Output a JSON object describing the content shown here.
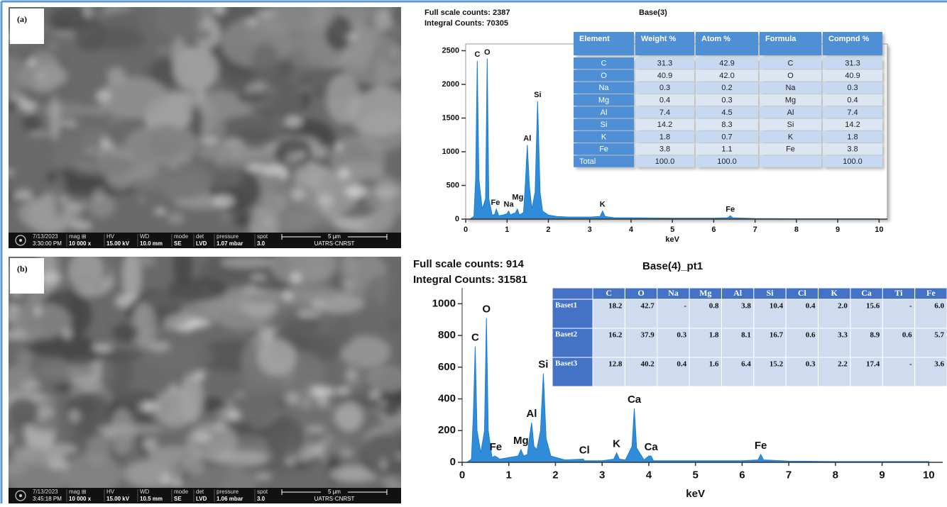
{
  "panels": [
    {
      "label": "(a)",
      "sem": {
        "info": [
          [
            "7/13/2023",
            "3:30:00 PM"
          ],
          [
            "mag ⊞",
            "10 000 x"
          ],
          [
            "HV",
            "15.00 kV"
          ],
          [
            "WD",
            "10.0 mm"
          ],
          [
            "mode",
            "SE"
          ],
          [
            "det",
            "LVD"
          ],
          [
            "pressure",
            "1.07 mbar"
          ],
          [
            "spot",
            "3.0"
          ]
        ],
        "scale": "5 µm",
        "lab": "UATRS·CNRST"
      },
      "table": {
        "header": [
          "Element",
          "Weight %",
          "Atom %",
          "Formula",
          "Compnd %"
        ],
        "rows": [
          [
            "C",
            "31.3",
            "42.9",
            "C",
            "31.3"
          ],
          [
            "O",
            "40.9",
            "42.0",
            "O",
            "40.9"
          ],
          [
            "Na",
            "0.3",
            "0.2",
            "Na",
            "0.3"
          ],
          [
            "Mg",
            "0.4",
            "0.3",
            "Mg",
            "0.4"
          ],
          [
            "Al",
            "7.4",
            "4.5",
            "Al",
            "7.4"
          ],
          [
            "Si",
            "14.2",
            "8.3",
            "Si",
            "14.2"
          ],
          [
            "K",
            "1.8",
            "0.7",
            "K",
            "1.8"
          ],
          [
            "Fe",
            "3.8",
            "1.1",
            "Fe",
            "3.8"
          ],
          [
            "Total",
            "100.0",
            "100.0",
            null,
            "100.0"
          ]
        ]
      }
    },
    {
      "label": "(b)",
      "sem": {
        "info": [
          [
            "7/13/2023",
            "3:45:18 PM"
          ],
          [
            "mag ⊞",
            "10 000 x"
          ],
          [
            "HV",
            "15.00 kV"
          ],
          [
            "WD",
            "10.5 mm"
          ],
          [
            "mode",
            "SE"
          ],
          [
            "det",
            "LVD"
          ],
          [
            "pressure",
            "1.06 mbar"
          ],
          [
            "spot",
            "3.0"
          ]
        ],
        "scale": "5 µm",
        "lab": "UATRS·CNRST"
      },
      "table": {
        "header": [
          "C",
          "O",
          "Na",
          "Mg",
          "Al",
          "Si",
          "Cl",
          "K",
          "Ca",
          "Ti",
          "Fe"
        ],
        "rows": [
          {
            "name": "Baset1",
            "values": [
              "18.2",
              "42.7",
              "-",
              "0.8",
              "3.8",
              "10.4",
              "0.4",
              "2.0",
              "15.6",
              "-",
              "6.0"
            ]
          },
          {
            "name": "Baset2",
            "values": [
              "16.2",
              "37.9",
              "0.3",
              "1.8",
              "8.1",
              "16.7",
              "0.6",
              "3.3",
              "8.9",
              "0.6",
              "5.7"
            ]
          },
          {
            "name": "Baset3",
            "values": [
              "12.8",
              "40.2",
              "0.4",
              "1.6",
              "6.4",
              "15.2",
              "0.3",
              "2.2",
              "17.4",
              "-",
              "3.6"
            ]
          }
        ]
      }
    }
  ],
  "chart_data": [
    {
      "type": "area",
      "title": "Base(3)",
      "header": [
        "Full scale counts: 2387",
        "Integral Counts: 70305"
      ],
      "x_label": "keV",
      "color": "#1a7fd4",
      "x": [
        0.1,
        0.2,
        0.24,
        0.28,
        0.32,
        0.4,
        0.48,
        0.52,
        0.56,
        0.64,
        0.7,
        0.74,
        0.8,
        0.9,
        1.0,
        1.04,
        1.08,
        1.14,
        1.2,
        1.25,
        1.3,
        1.4,
        1.44,
        1.49,
        1.54,
        1.6,
        1.68,
        1.74,
        1.8,
        1.86,
        2.0,
        2.2,
        2.5,
        3.0,
        3.25,
        3.31,
        3.37,
        3.6,
        4.0,
        5.0,
        6.0,
        6.34,
        6.4,
        6.46,
        7.0,
        8.0,
        9.0,
        10.0
      ],
      "values": [
        0,
        40,
        600,
        2350,
        600,
        150,
        300,
        2380,
        300,
        60,
        70,
        150,
        50,
        60,
        80,
        120,
        60,
        80,
        90,
        150,
        60,
        100,
        500,
        1100,
        500,
        150,
        400,
        1750,
        400,
        120,
        60,
        40,
        30,
        30,
        40,
        120,
        40,
        20,
        20,
        15,
        15,
        20,
        50,
        20,
        10,
        5,
        5,
        5
      ],
      "annotations": [
        {
          "text": "C",
          "x": 0.28,
          "y": 2350
        },
        {
          "text": "O",
          "x": 0.52,
          "y": 2380
        },
        {
          "text": "Fe",
          "x": 0.72,
          "y": 150
        },
        {
          "text": "Na",
          "x": 1.04,
          "y": 120
        },
        {
          "text": "Mg",
          "x": 1.26,
          "y": 230
        },
        {
          "text": "Al",
          "x": 1.49,
          "y": 1100
        },
        {
          "text": "Si",
          "x": 1.74,
          "y": 1750
        },
        {
          "text": "K",
          "x": 3.31,
          "y": 120
        },
        {
          "text": "Fe",
          "x": 6.4,
          "y": 50
        }
      ],
      "xlim": [
        0,
        10.2
      ],
      "xticks": [
        0,
        1,
        2,
        3,
        4,
        5,
        6,
        7,
        8,
        9,
        10
      ],
      "ylim": [
        0,
        2600
      ],
      "yticks": [
        0,
        500,
        1000,
        1500,
        2000,
        2500
      ],
      "grid": false
    },
    {
      "type": "area",
      "title": "Base(4)_pt1",
      "header": [
        "Full scale counts: 914",
        "Integral Counts: 31581"
      ],
      "x_label": "keV",
      "color": "#1a7fd4",
      "x": [
        0.1,
        0.2,
        0.24,
        0.28,
        0.32,
        0.4,
        0.48,
        0.52,
        0.56,
        0.64,
        0.7,
        0.76,
        0.8,
        1.0,
        1.2,
        1.26,
        1.32,
        1.4,
        1.44,
        1.49,
        1.54,
        1.6,
        1.68,
        1.74,
        1.8,
        1.9,
        2.2,
        2.6,
        2.62,
        2.7,
        3.0,
        3.25,
        3.31,
        3.37,
        3.5,
        3.64,
        3.69,
        3.74,
        3.9,
        4.0,
        4.05,
        4.1,
        4.5,
        5.0,
        6.0,
        6.34,
        6.4,
        6.46,
        7.0,
        8.0,
        9.0,
        10.0
      ],
      "values": [
        0,
        20,
        300,
        730,
        200,
        60,
        200,
        910,
        200,
        30,
        40,
        30,
        20,
        30,
        40,
        80,
        40,
        50,
        150,
        250,
        100,
        80,
        200,
        560,
        150,
        40,
        15,
        20,
        10,
        10,
        10,
        20,
        60,
        20,
        15,
        100,
        340,
        90,
        15,
        40,
        40,
        10,
        10,
        10,
        10,
        15,
        50,
        15,
        8,
        5,
        5,
        5
      ],
      "annotations": [
        {
          "text": "C",
          "x": 0.28,
          "y": 730
        },
        {
          "text": "O",
          "x": 0.52,
          "y": 910
        },
        {
          "text": "Fe",
          "x": 0.72,
          "y": 40
        },
        {
          "text": "Mg",
          "x": 1.26,
          "y": 80
        },
        {
          "text": "Al",
          "x": 1.49,
          "y": 250
        },
        {
          "text": "Si",
          "x": 1.74,
          "y": 560
        },
        {
          "text": "Cl",
          "x": 2.62,
          "y": 20
        },
        {
          "text": "K",
          "x": 3.31,
          "y": 60
        },
        {
          "text": "Ca",
          "x": 3.69,
          "y": 340
        },
        {
          "text": "Ca",
          "x": 4.05,
          "y": 40
        },
        {
          "text": "Fe",
          "x": 6.4,
          "y": 50
        }
      ],
      "xlim": [
        0,
        10.3
      ],
      "xticks": [
        0,
        1,
        2,
        3,
        4,
        5,
        6,
        7,
        8,
        9,
        10
      ],
      "ylim": [
        0,
        1100
      ],
      "yticks": [
        0,
        200,
        400,
        600,
        800,
        1000
      ],
      "grid": false
    }
  ]
}
